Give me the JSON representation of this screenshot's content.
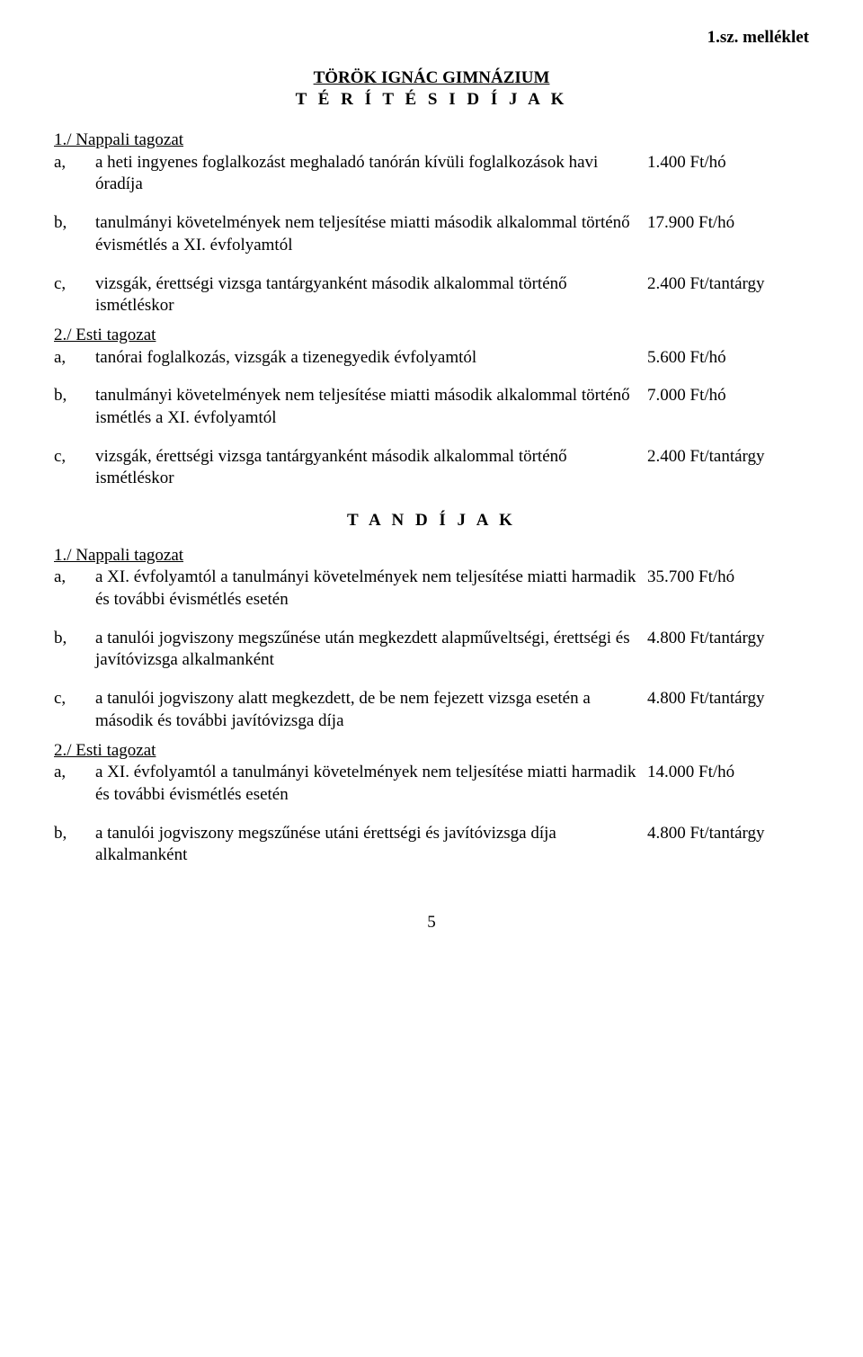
{
  "attachment_label": "1.sz. melléklet",
  "title": {
    "line1": "TÖRÖK IGNÁC GIMNÁZIUM",
    "line2": "T É R Í T É S I   D Í J A K"
  },
  "section1": {
    "heading": "1./ Nappali tagozat",
    "items": [
      {
        "label": "a,",
        "desc": "a heti ingyenes foglalkozást meghaladó tanórán kívüli foglalkozások havi óradíja",
        "amount": "1.400 Ft/hó"
      },
      {
        "label": "b,",
        "desc": "tanulmányi követelmények nem teljesítése miatti második alkalommal történő évismétlés a XI. évfolyamtól",
        "amount": "17.900 Ft/hó"
      },
      {
        "label": "c,",
        "desc": "vizsgák, érettségi vizsga tantárgyanként második alkalommal történő ismétléskor",
        "amount": "2.400 Ft/tantárgy"
      }
    ]
  },
  "section2": {
    "heading": "2./ Esti tagozat",
    "items": [
      {
        "label": "a,",
        "desc": "tanórai foglalkozás, vizsgák a tizenegyedik évfolyamtól",
        "amount": "5.600 Ft/hó"
      },
      {
        "label": "b,",
        "desc": "tanulmányi követelmények nem teljesítése miatti második alkalommal történő ismétlés a XI. évfolyamtól",
        "amount": "7.000 Ft/hó"
      },
      {
        "label": "c,",
        "desc": "vizsgák, érettségi vizsga tantárgyanként második alkalommal történő ismétléskor",
        "amount": "2.400 Ft/tantárgy"
      }
    ]
  },
  "subheading": "T A N D Í J A K",
  "section3": {
    "heading": "1./ Nappali tagozat",
    "items": [
      {
        "label": "a,",
        "desc": "a XI. évfolyamtól a tanulmányi követelmények nem teljesítése miatti harmadik és további évismétlés esetén",
        "amount": "35.700 Ft/hó"
      },
      {
        "label": "b,",
        "desc": "a tanulói jogviszony megszűnése után megkezdett alapműveltségi, érettségi és javítóvizsga alkalmanként",
        "amount": "4.800 Ft/tantárgy"
      },
      {
        "label": "c,",
        "desc": "a tanulói jogviszony alatt megkezdett, de be nem fejezett vizsga esetén a második és további javítóvizsga díja",
        "amount": "4.800 Ft/tantárgy"
      }
    ]
  },
  "section4": {
    "heading": "2./ Esti tagozat",
    "items": [
      {
        "label": "a,",
        "desc": "a XI. évfolyamtól a tanulmányi követelmények nem teljesítése miatti harmadik és további évismétlés esetén",
        "amount": "14.000 Ft/hó"
      },
      {
        "label": "b,",
        "desc": "a tanulói jogviszony megszűnése utáni érettségi és javítóvizsga díja alkalmanként",
        "amount": "4.800 Ft/tantárgy"
      }
    ]
  },
  "page_number": "5"
}
